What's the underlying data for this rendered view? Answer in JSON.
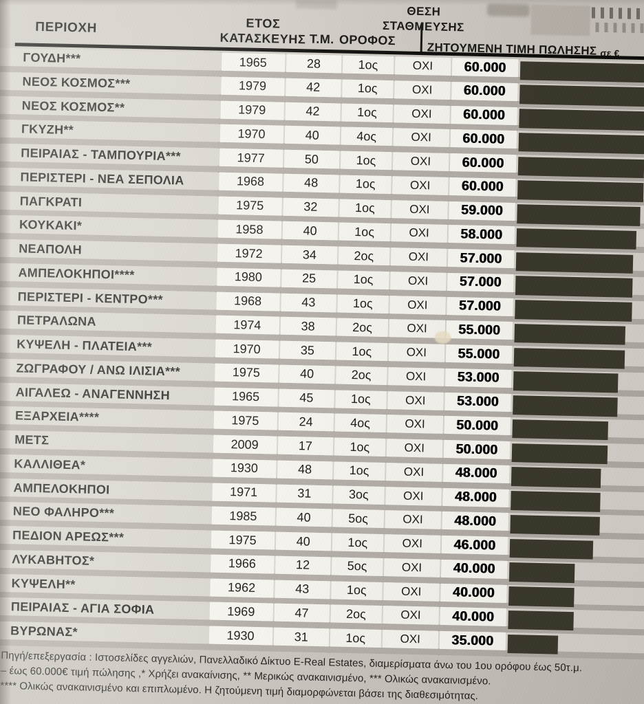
{
  "page": {
    "background_color": "#c9c4bd",
    "bar_color": "#3a372b",
    "stripe_color": "#b2ada6"
  },
  "table": {
    "headers": {
      "area": "ΠΕΡΙΟΧΗ",
      "year_line1": "ΕΤΟΣ",
      "year_line2": "ΚΑΤΑΣΚΕΥΗΣ",
      "sqm": "Τ.Μ.",
      "floor": "ΟΡΟΦΟΣ",
      "parking_line1": "ΘΕΣΗ",
      "parking_line2": "ΣΤΑΘΜΕΥΣΗΣ",
      "price": "ΖΗΤΟΥΜΕΝΗ ΤΙΜΗ ΠΩΛΗΣΗΣ",
      "price_suffix": "σε €"
    },
    "rows": [
      {
        "area": "ΓΟΥΔΗ***",
        "year": "1965",
        "sqm": "28",
        "floor": "1ος",
        "parking": "ΟΧΙ",
        "price": "60.000",
        "price_eur": 60000
      },
      {
        "area": "ΝΕΟΣ ΚΟΣΜΟΣ***",
        "year": "1979",
        "sqm": "42",
        "floor": "1ος",
        "parking": "ΟΧΙ",
        "price": "60.000",
        "price_eur": 60000
      },
      {
        "area": "ΝΕΟΣ ΚΟΣΜΟΣ**",
        "year": "1979",
        "sqm": "42",
        "floor": "1ος",
        "parking": "ΟΧΙ",
        "price": "60.000",
        "price_eur": 60000
      },
      {
        "area": "ΓΚΥΖΗ**",
        "year": "1970",
        "sqm": "40",
        "floor": "4ος",
        "parking": "ΟΧΙ",
        "price": "60.000",
        "price_eur": 60000
      },
      {
        "area": "ΠΕΙΡΑΙΑΣ - ΤΑΜΠΟΥΡΙΑ***",
        "year": "1977",
        "sqm": "50",
        "floor": "1ος",
        "parking": "ΟΧΙ",
        "price": "60.000",
        "price_eur": 60000
      },
      {
        "area": "ΠΕΡΙΣΤΕΡΙ - ΝΕΑ ΣΕΠΟΛΙΑ",
        "year": "1968",
        "sqm": "48",
        "floor": "1ος",
        "parking": "ΟΧΙ",
        "price": "60.000",
        "price_eur": 60000
      },
      {
        "area": "ΠΑΓΚΡΑΤΙ",
        "year": "1975",
        "sqm": "32",
        "floor": "1ος",
        "parking": "ΟΧΙ",
        "price": "59.000",
        "price_eur": 59000
      },
      {
        "area": "ΚΟΥΚΑΚΙ*",
        "year": "1958",
        "sqm": "40",
        "floor": "1ος",
        "parking": "ΟΧΙ",
        "price": "58.000",
        "price_eur": 58000
      },
      {
        "area": "ΝΕΑΠΟΛΗ",
        "year": "1972",
        "sqm": "34",
        "floor": "2ος",
        "parking": "ΟΧΙ",
        "price": "57.000",
        "price_eur": 57000
      },
      {
        "area": "ΑΜΠΕΛΟΚΗΠΟΙ****",
        "year": "1980",
        "sqm": "25",
        "floor": "1ος",
        "parking": "ΟΧΙ",
        "price": "57.000",
        "price_eur": 57000
      },
      {
        "area": "ΠΕΡΙΣΤΕΡΙ - ΚΕΝΤΡΟ***",
        "year": "1968",
        "sqm": "43",
        "floor": "1ος",
        "parking": "ΟΧΙ",
        "price": "57.000",
        "price_eur": 57000
      },
      {
        "area": "ΠΕΤΡΑΛΩΝΑ",
        "year": "1974",
        "sqm": "38",
        "floor": "2ος",
        "parking": "ΟΧΙ",
        "price": "55.000",
        "price_eur": 55000
      },
      {
        "area": "ΚΥΨΕΛΗ - ΠΛΑΤΕΙΑ***",
        "year": "1970",
        "sqm": "35",
        "floor": "1ος",
        "parking": "ΟΧΙ",
        "price": "55.000",
        "price_eur": 55000
      },
      {
        "area": "ΖΩΓΡΑΦΟΥ / ΑΝΩ ΙΛΙΣΙΑ***",
        "year": "1975",
        "sqm": "40",
        "floor": "2ος",
        "parking": "ΟΧΙ",
        "price": "53.000",
        "price_eur": 53000
      },
      {
        "area": "ΑΙΓΑΛΕΩ - ΑΝΑΓΕΝΝΗΣΗ",
        "year": "1965",
        "sqm": "45",
        "floor": "1ος",
        "parking": "ΟΧΙ",
        "price": "53.000",
        "price_eur": 53000
      },
      {
        "area": "ΕΞΑΡΧΕΙΑ****",
        "year": "1975",
        "sqm": "24",
        "floor": "4ος",
        "parking": "ΟΧΙ",
        "price": "50.000",
        "price_eur": 50000
      },
      {
        "area": "ΜΕΤΣ",
        "year": "2009",
        "sqm": "17",
        "floor": "1ος",
        "parking": "ΟΧΙ",
        "price": "50.000",
        "price_eur": 50000
      },
      {
        "area": "ΚΑΛΛΙΘΕΑ*",
        "year": "1930",
        "sqm": "48",
        "floor": "1ος",
        "parking": "ΟΧΙ",
        "price": "48.000",
        "price_eur": 48000
      },
      {
        "area": "ΑΜΠΕΛΟΚΗΠΟΙ",
        "year": "1971",
        "sqm": "31",
        "floor": "3ος",
        "parking": "ΟΧΙ",
        "price": "48.000",
        "price_eur": 48000
      },
      {
        "area": "ΝΕΟ ΦΑΛΗΡΟ***",
        "year": "1985",
        "sqm": "40",
        "floor": "5ος",
        "parking": "ΟΧΙ",
        "price": "48.000",
        "price_eur": 48000
      },
      {
        "area": "ΠΕΔΙΟΝ ΑΡΕΩΣ***",
        "year": "1975",
        "sqm": "40",
        "floor": "1ος",
        "parking": "ΟΧΙ",
        "price": "46.000",
        "price_eur": 46000
      },
      {
        "area": "ΛΥΚΑΒΗΤΟΣ*",
        "year": "1966",
        "sqm": "12",
        "floor": "5ος",
        "parking": "ΟΧΙ",
        "price": "40.000",
        "price_eur": 40000
      },
      {
        "area": "ΚΥΨΕΛΗ**",
        "year": "1962",
        "sqm": "43",
        "floor": "1ος",
        "parking": "ΟΧΙ",
        "price": "40.000",
        "price_eur": 40000
      },
      {
        "area": "ΠΕΙΡΑΙΑΣ - ΑΓΙΑ ΣΟΦΙΑ",
        "year": "1969",
        "sqm": "47",
        "floor": "2ος",
        "parking": "ΟΧΙ",
        "price": "40.000",
        "price_eur": 40000
      },
      {
        "area": "ΒΥΡΩΝΑΣ*",
        "year": "1930",
        "sqm": "31",
        "floor": "1ος",
        "parking": "ΟΧΙ",
        "price": "35.000",
        "price_eur": 35000
      }
    ]
  },
  "chart_data": {
    "type": "bar",
    "title": "ΖΗΤΟΥΜΕΝΗ ΤΙΜΗ ΠΩΛΗΣΗΣ σε €",
    "orientation": "horizontal",
    "categories": [
      "ΓΟΥΔΗ***",
      "ΝΕΟΣ ΚΟΣΜΟΣ***",
      "ΝΕΟΣ ΚΟΣΜΟΣ**",
      "ΓΚΥΖΗ**",
      "ΠΕΙΡΑΙΑΣ - ΤΑΜΠΟΥΡΙΑ***",
      "ΠΕΡΙΣΤΕΡΙ - ΝΕΑ ΣΕΠΟΛΙΑ",
      "ΠΑΓΚΡΑΤΙ",
      "ΚΟΥΚΑΚΙ*",
      "ΝΕΑΠΟΛΗ",
      "ΑΜΠΕΛΟΚΗΠΟΙ****",
      "ΠΕΡΙΣΤΕΡΙ - ΚΕΝΤΡΟ***",
      "ΠΕΤΡΑΛΩΝΑ",
      "ΚΥΨΕΛΗ - ΠΛΑΤΕΙΑ***",
      "ΖΩΓΡΑΦΟΥ / ΑΝΩ ΙΛΙΣΙΑ***",
      "ΑΙΓΑΛΕΩ - ΑΝΑΓΕΝΝΗΣΗ",
      "ΕΞΑΡΧΕΙΑ****",
      "ΜΕΤΣ",
      "ΚΑΛΛΙΘΕΑ*",
      "ΑΜΠΕΛΟΚΗΠΟΙ",
      "ΝΕΟ ΦΑΛΗΡΟ***",
      "ΠΕΔΙΟΝ ΑΡΕΩΣ***",
      "ΛΥΚΑΒΗΤΟΣ*",
      "ΚΥΨΕΛΗ**",
      "ΠΕΙΡΑΙΑΣ - ΑΓΙΑ ΣΟΦΙΑ",
      "ΒΥΡΩΝΑΣ*"
    ],
    "values": [
      60000,
      60000,
      60000,
      60000,
      60000,
      60000,
      59000,
      58000,
      57000,
      57000,
      57000,
      55000,
      55000,
      53000,
      53000,
      50000,
      50000,
      48000,
      48000,
      48000,
      46000,
      40000,
      40000,
      40000,
      35000
    ],
    "value_labels": [
      "60.000",
      "60.000",
      "60.000",
      "60.000",
      "60.000",
      "60.000",
      "59.000",
      "58.000",
      "57.000",
      "57.000",
      "57.000",
      "55.000",
      "55.000",
      "53.000",
      "53.000",
      "50.000",
      "50.000",
      "48.000",
      "48.000",
      "48.000",
      "46.000",
      "40.000",
      "40.000",
      "40.000",
      "35.000"
    ],
    "bar_color": "#3a372b",
    "grid": false,
    "legend": "none"
  },
  "footer": {
    "line1": "Πηγή/επεξεργασία : Ιστοσελίδες αγγελιών, Πανελλαδικό Δίκτυο E-Real Estates, διαμερίσματα άνω του 1ου ορόφου έως 50τ.μ.",
    "line2": "– έως 60.000€ τιμή πώλησης ,* Χρήζει ανακαίνισης, ** Μερικώς ανακαινισμένο, *** Ολικώς ανακαινισμένο.",
    "line3": "**** Ολικώς ανακαινισμένο και επιπλωμένο. Η ζητούμενη τιμή διαμορφώνεται βάσει της διαθεσιμότητας."
  }
}
